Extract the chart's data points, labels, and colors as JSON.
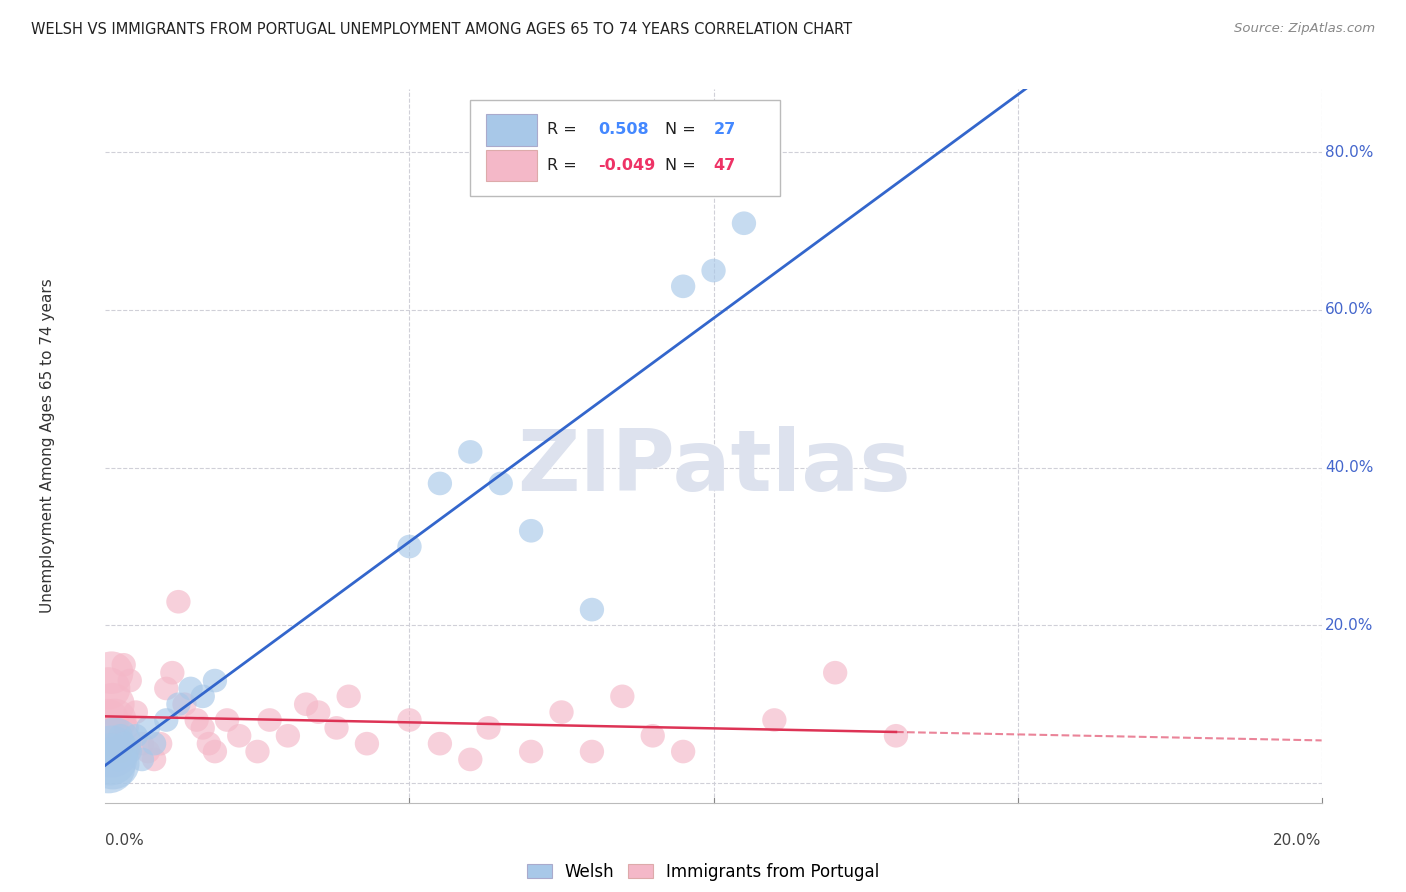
{
  "title": "WELSH VS IMMIGRANTS FROM PORTUGAL UNEMPLOYMENT AMONG AGES 65 TO 74 YEARS CORRELATION CHART",
  "source": "Source: ZipAtlas.com",
  "ylabel": "Unemployment Among Ages 65 to 74 years",
  "xlim": [
    0.0,
    0.2
  ],
  "ylim": [
    -0.025,
    0.88
  ],
  "welsh_color": "#a8c8e8",
  "wales_edge_color": "#7aabcf",
  "portugal_color": "#f4b8c8",
  "portugal_edge_color": "#e88aa0",
  "trend_welsh_color": "#3366cc",
  "trend_portugal_color": "#dd3355",
  "welsh_R": "0.508",
  "welsh_N": "27",
  "portugal_R": "-0.049",
  "portugal_N": "47",
  "welsh_data_x": [
    0.0005,
    0.0008,
    0.001,
    0.0012,
    0.0015,
    0.002,
    0.0025,
    0.003,
    0.004,
    0.005,
    0.006,
    0.007,
    0.008,
    0.01,
    0.012,
    0.014,
    0.016,
    0.018,
    0.05,
    0.055,
    0.06,
    0.065,
    0.07,
    0.08,
    0.095,
    0.1,
    0.105
  ],
  "welsh_data_y": [
    0.02,
    0.03,
    0.04,
    0.025,
    0.05,
    0.03,
    0.06,
    0.05,
    0.04,
    0.06,
    0.03,
    0.07,
    0.05,
    0.08,
    0.1,
    0.12,
    0.11,
    0.13,
    0.3,
    0.38,
    0.42,
    0.38,
    0.32,
    0.22,
    0.63,
    0.65,
    0.71
  ],
  "portugal_data_x": [
    0.0003,
    0.0005,
    0.0007,
    0.001,
    0.0012,
    0.0015,
    0.002,
    0.0025,
    0.003,
    0.0035,
    0.004,
    0.005,
    0.006,
    0.007,
    0.008,
    0.009,
    0.01,
    0.011,
    0.012,
    0.013,
    0.015,
    0.016,
    0.017,
    0.018,
    0.02,
    0.022,
    0.025,
    0.027,
    0.03,
    0.033,
    0.035,
    0.038,
    0.04,
    0.043,
    0.05,
    0.055,
    0.06,
    0.063,
    0.07,
    0.075,
    0.08,
    0.085,
    0.09,
    0.095,
    0.11,
    0.12,
    0.13
  ],
  "portugal_data_y": [
    0.08,
    0.12,
    0.06,
    0.14,
    0.1,
    0.08,
    0.05,
    0.04,
    0.15,
    0.07,
    0.13,
    0.09,
    0.05,
    0.04,
    0.03,
    0.05,
    0.12,
    0.14,
    0.23,
    0.1,
    0.08,
    0.07,
    0.05,
    0.04,
    0.08,
    0.06,
    0.04,
    0.08,
    0.06,
    0.1,
    0.09,
    0.07,
    0.11,
    0.05,
    0.08,
    0.05,
    0.03,
    0.07,
    0.04,
    0.09,
    0.04,
    0.11,
    0.06,
    0.04,
    0.08,
    0.14,
    0.06
  ],
  "ytick_positions": [
    0.0,
    0.2,
    0.4,
    0.6,
    0.8
  ],
  "xtick_minor_positions": [
    0.05,
    0.1,
    0.15,
    0.2
  ],
  "background_color": "#ffffff",
  "grid_color": "#d0d0d8",
  "watermark_text": "ZIPatlas",
  "watermark_color": "#dde2ee",
  "right_label_color": "#4466cc",
  "legend_r_n_color_blue": "#4488ff",
  "legend_r_n_color_pink": "#ee3366"
}
